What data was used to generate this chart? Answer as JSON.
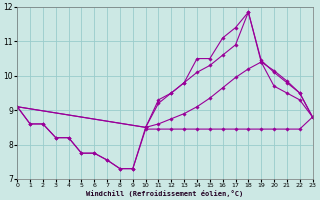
{
  "xlabel": "Windchill (Refroidissement éolien,°C)",
  "xlim": [
    0,
    23
  ],
  "ylim": [
    7,
    12
  ],
  "yticks": [
    7,
    8,
    9,
    10,
    11,
    12
  ],
  "xticks": [
    0,
    1,
    2,
    3,
    4,
    5,
    6,
    7,
    8,
    9,
    10,
    11,
    12,
    13,
    14,
    15,
    16,
    17,
    18,
    19,
    20,
    21,
    22,
    23
  ],
  "bg_color": "#cce8e4",
  "grid_color": "#99cccc",
  "line_color": "#990099",
  "lines": [
    {
      "x": [
        0,
        1,
        2,
        3,
        4,
        5,
        6,
        7,
        8,
        9,
        10,
        11,
        12,
        13,
        14,
        15,
        16,
        17,
        18,
        19,
        20,
        21,
        22,
        23
      ],
      "y": [
        9.1,
        8.6,
        8.6,
        8.2,
        8.2,
        7.75,
        7.75,
        7.55,
        7.3,
        7.3,
        8.45,
        8.45,
        8.45,
        8.45,
        8.45,
        8.45,
        8.45,
        8.45,
        8.45,
        8.45,
        8.45,
        8.45,
        8.45,
        8.8
      ]
    },
    {
      "x": [
        0,
        1,
        2,
        3,
        4,
        5,
        6,
        7,
        8,
        9,
        10,
        11,
        12,
        13,
        14,
        15,
        16,
        17,
        18,
        19,
        20,
        21,
        22,
        23
      ],
      "y": [
        9.1,
        8.6,
        8.6,
        8.2,
        8.2,
        7.75,
        7.75,
        7.55,
        7.3,
        7.3,
        8.5,
        9.3,
        9.5,
        9.8,
        10.5,
        10.5,
        11.1,
        11.4,
        11.85,
        10.4,
        9.7,
        9.5,
        9.3,
        8.8
      ]
    },
    {
      "x": [
        0,
        10,
        11,
        12,
        13,
        14,
        15,
        16,
        17,
        18,
        19,
        20,
        21,
        22,
        23
      ],
      "y": [
        9.1,
        8.5,
        9.2,
        9.5,
        9.8,
        10.1,
        10.3,
        10.6,
        10.9,
        11.85,
        10.45,
        10.1,
        9.8,
        9.5,
        8.8
      ]
    },
    {
      "x": [
        0,
        10,
        11,
        12,
        13,
        14,
        15,
        16,
        17,
        18,
        19,
        20,
        21,
        22,
        23
      ],
      "y": [
        9.1,
        8.5,
        8.6,
        8.75,
        8.9,
        9.1,
        9.35,
        9.65,
        9.95,
        10.2,
        10.4,
        10.15,
        9.85,
        9.5,
        8.8
      ]
    }
  ]
}
